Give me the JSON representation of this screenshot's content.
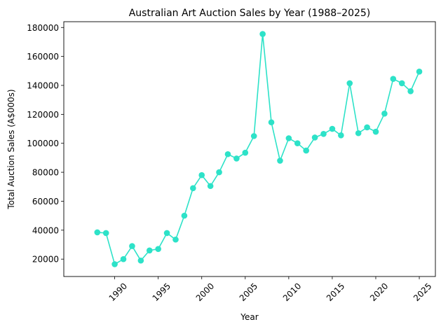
{
  "chart_data": {
    "type": "line",
    "title": "Australian Art Auction Sales by Year (1988–2025)",
    "xlabel": "Year",
    "ylabel": "Total Auction Sales (A$000s)",
    "xlim": [
      1984.15,
      2026.85
    ],
    "ylim": [
      8000,
      184000
    ],
    "xticks": [
      1990,
      1995,
      2000,
      2005,
      2010,
      2015,
      2020,
      2025
    ],
    "yticks": [
      20000,
      40000,
      60000,
      80000,
      100000,
      120000,
      140000,
      160000,
      180000
    ],
    "grid": false,
    "series": [
      {
        "color": "#2de2c8",
        "marker": "circle",
        "x": [
          1988,
          1989,
          1990,
          1991,
          1992,
          1993,
          1994,
          1995,
          1996,
          1997,
          1998,
          1999,
          2000,
          2001,
          2002,
          2003,
          2004,
          2005,
          2006,
          2007,
          2008,
          2009,
          2010,
          2011,
          2012,
          2013,
          2014,
          2015,
          2016,
          2017,
          2018,
          2019,
          2020,
          2021,
          2022,
          2023,
          2024,
          2025
        ],
        "y": [
          38500,
          38000,
          16500,
          20000,
          29000,
          19000,
          26000,
          27000,
          38000,
          33500,
          50000,
          69000,
          78000,
          70500,
          80000,
          92500,
          89500,
          93500,
          105000,
          175500,
          114500,
          88000,
          103500,
          100000,
          95000,
          104000,
          106500,
          110000,
          105500,
          141500,
          107000,
          111000,
          108000,
          120500,
          144500,
          141500,
          136000,
          149500
        ]
      }
    ]
  }
}
